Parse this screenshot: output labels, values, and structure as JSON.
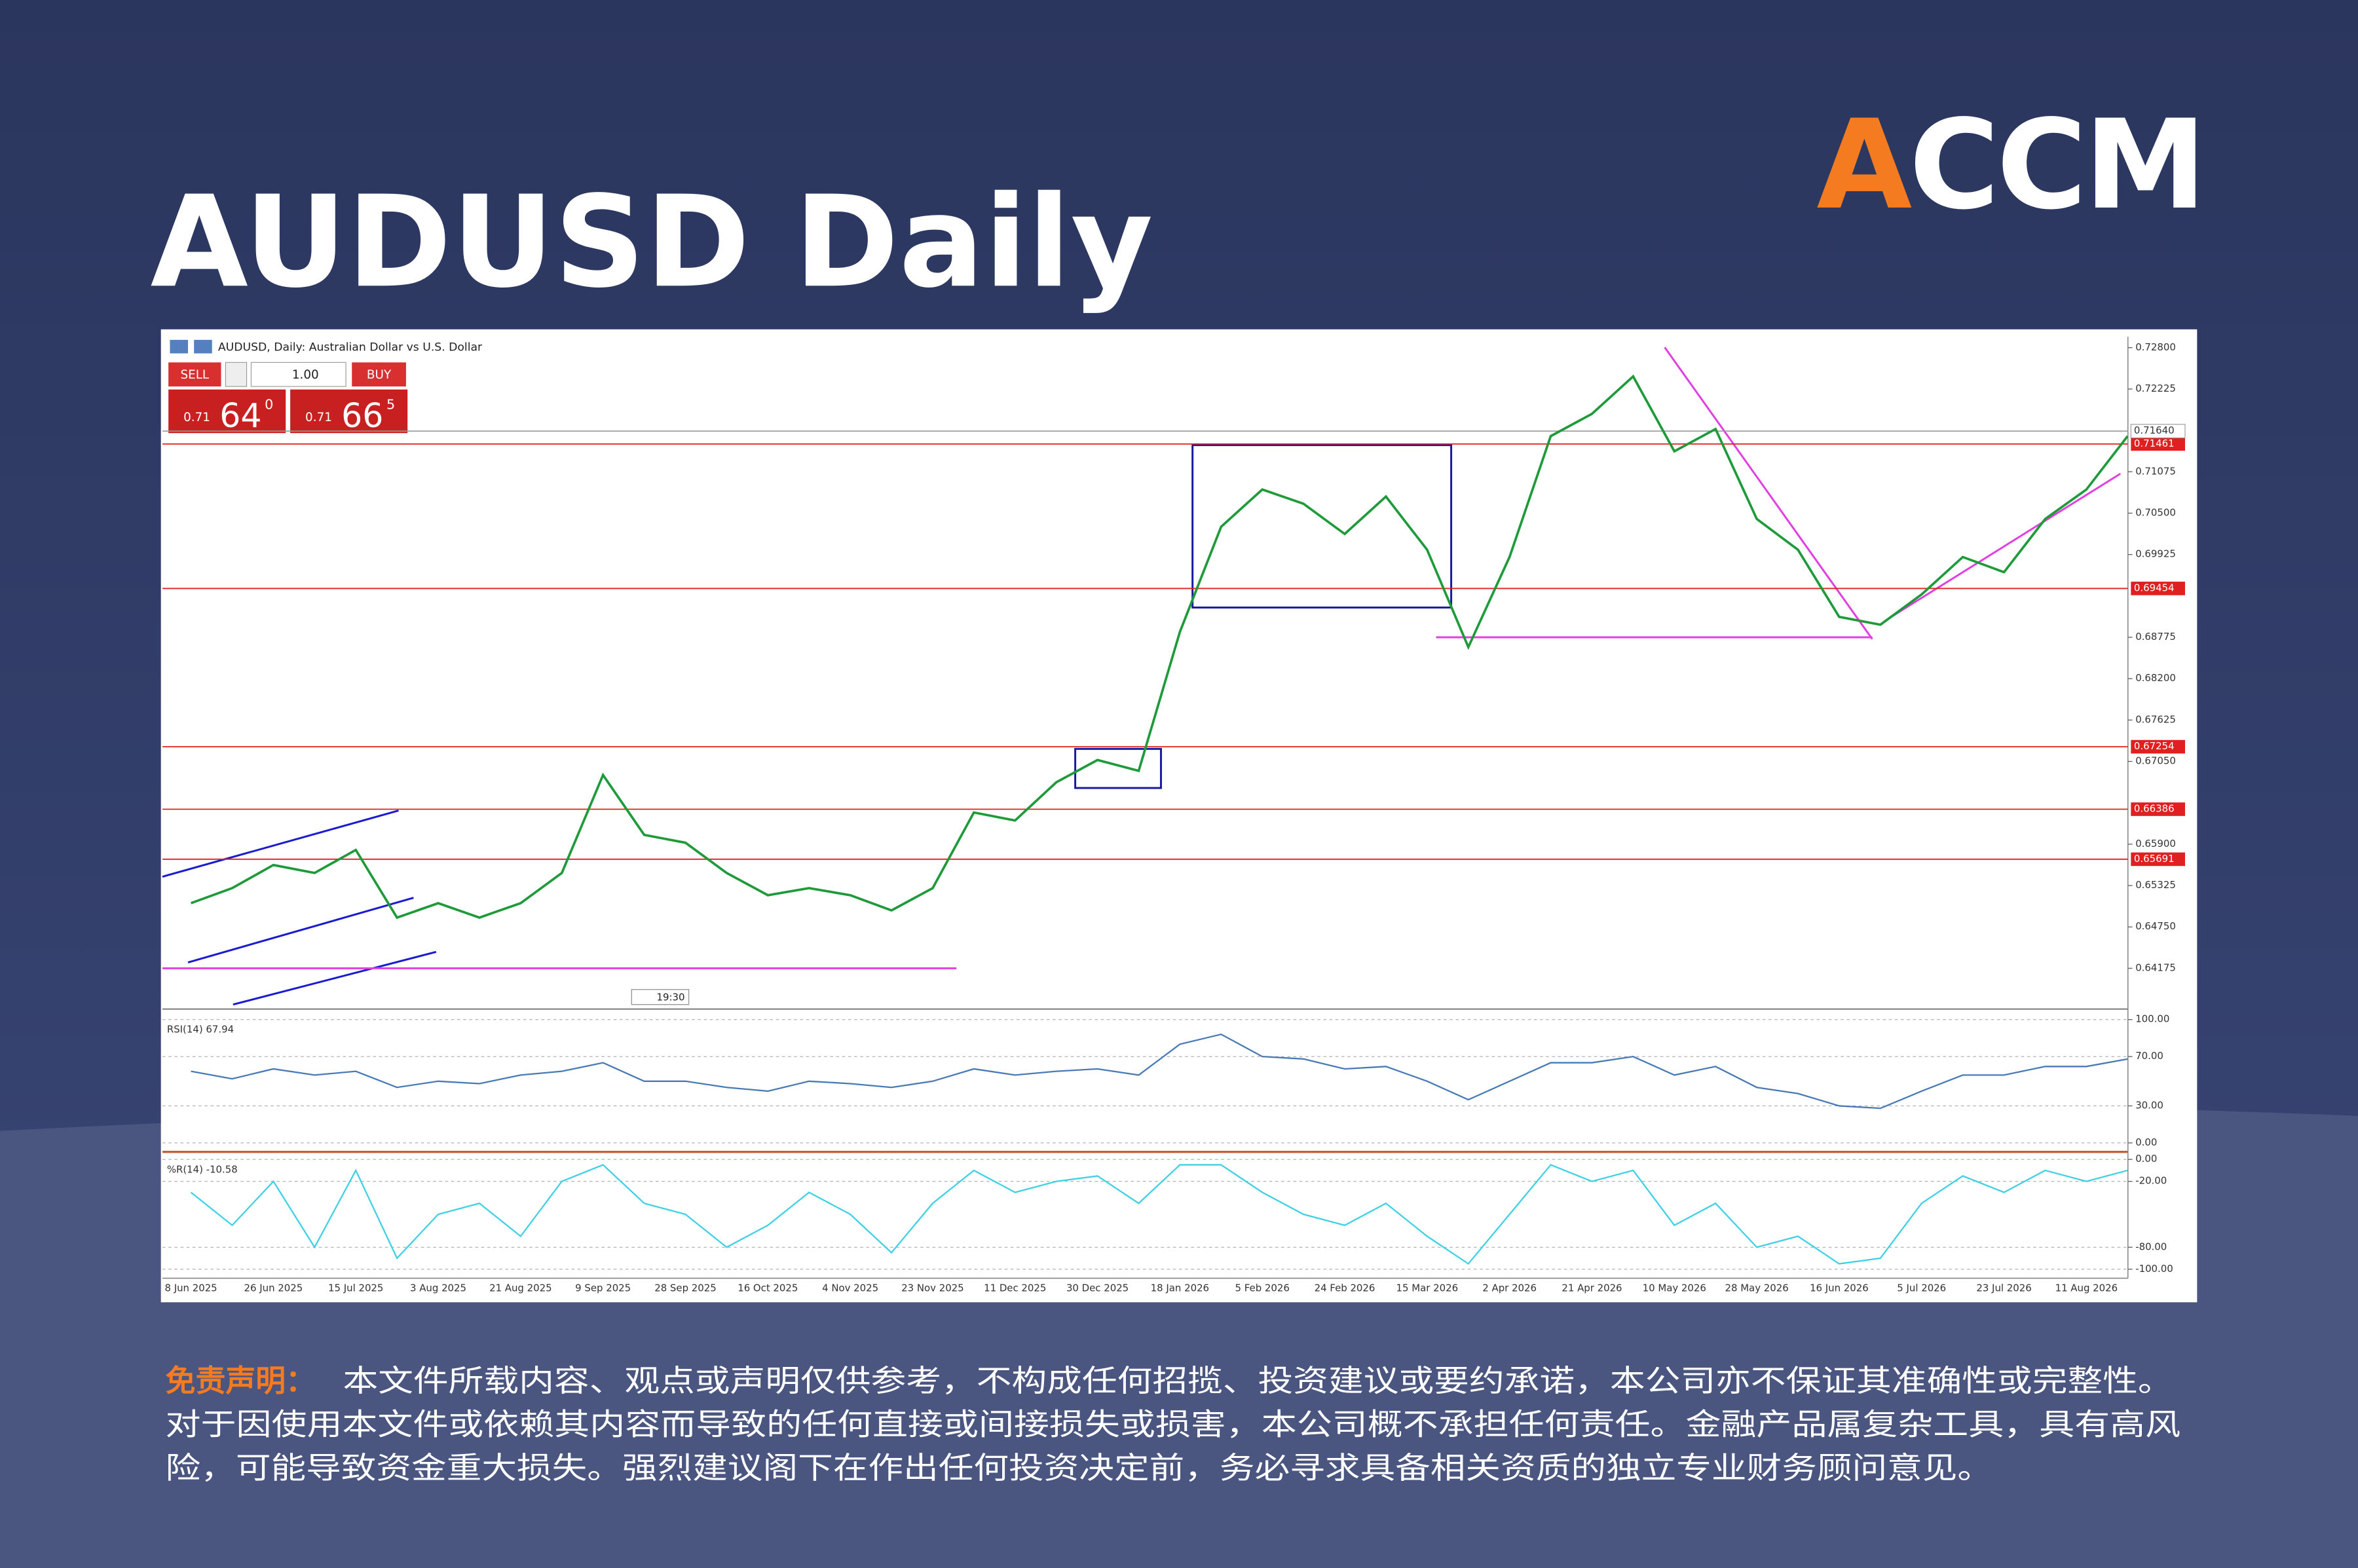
{
  "logo": {
    "accent": "A",
    "rest": "CCM"
  },
  "title": "AUDUSD Daily",
  "terminal": {
    "sell": "SELL",
    "buy": "BUY",
    "lot": "1.00",
    "bid": {
      "prefix": "0.71",
      "big": "64",
      "sup": "0"
    },
    "ask": {
      "prefix": "0.71",
      "big": "66",
      "sup": "5"
    },
    "clock": "19:30"
  },
  "chart_data": [
    {
      "type": "line",
      "title": "AUDUSD, Daily: Australian Dollar vs U.S. Dollar",
      "categories": [
        "8 Jun 2025",
        null,
        "26 Jun 2025",
        null,
        "15 Jul 2025",
        null,
        "3 Aug 2025",
        null,
        "21 Aug 2025",
        null,
        "9 Sep 2025",
        null,
        "28 Sep 2025",
        null,
        "16 Oct 2025",
        null,
        "4 Nov 2025",
        null,
        "23 Nov 2025",
        null,
        "11 Dec 2025",
        null,
        "30 Dec 2025",
        null,
        "18 Jan 2026",
        null,
        "5 Feb 2026",
        null,
        "24 Feb 2026",
        null,
        "15 Mar 2026",
        null,
        "2 Apr 2026",
        null,
        "21 Apr 2026",
        null,
        "10 May 2026",
        null,
        "28 May 2026",
        null,
        "16 Jun 2026",
        null,
        "5 Jul 2026",
        null,
        "23 Jul 2026",
        null,
        "11 Aug 2026",
        null
      ],
      "values": [
        0.6508,
        0.6529,
        0.6561,
        0.655,
        0.6582,
        0.6488,
        0.6508,
        0.6488,
        0.6508,
        0.655,
        0.6686,
        0.6603,
        0.6592,
        0.655,
        0.6519,
        0.6529,
        0.6519,
        0.6498,
        0.6529,
        0.6634,
        0.6623,
        0.6676,
        0.6707,
        0.6692,
        0.6885,
        0.7031,
        0.7083,
        0.7063,
        0.7021,
        0.7073,
        0.6999,
        0.6864,
        0.6989,
        0.7157,
        0.7188,
        0.724,
        0.7136,
        0.7167,
        0.7042,
        0.6999,
        0.6906,
        0.6895,
        0.6937,
        0.6989,
        0.6968,
        0.7042,
        0.7083,
        0.7157
      ],
      "color": "#1f9a3a",
      "ylim": [
        0.6363,
        0.7295
      ],
      "yticks": [
        {
          "value": 0.728,
          "label": "0.72800"
        },
        {
          "value": 0.72225,
          "label": "0.72225"
        },
        {
          "value": 0.71075,
          "label": "0.71075"
        },
        {
          "value": 0.705,
          "label": "0.70500"
        },
        {
          "value": 0.69925,
          "label": "0.69925"
        },
        {
          "value": 0.68775,
          "label": "0.68775"
        },
        {
          "value": 0.682,
          "label": "0.68200"
        },
        {
          "value": 0.67625,
          "label": "0.67625"
        },
        {
          "value": 0.6705,
          "label": "0.67050"
        },
        {
          "value": 0.659,
          "label": "0.65900"
        },
        {
          "value": 0.65325,
          "label": "0.65325"
        },
        {
          "value": 0.6475,
          "label": "0.64750"
        },
        {
          "value": 0.64175,
          "label": "0.64175"
        }
      ],
      "levels": [
        0.71461,
        0.69454,
        0.67254,
        0.66386,
        0.65691
      ],
      "level_color": "#e02020",
      "current_price": {
        "value": 0.7164,
        "label": "0.71640"
      },
      "support_lines": [
        0.64175,
        0.68775
      ],
      "support_color": "#e040e0"
    },
    {
      "type": "line",
      "title": "RSI(14) 67.94",
      "values": [
        58,
        52,
        60,
        55,
        58,
        45,
        50,
        48,
        55,
        58,
        65,
        50,
        50,
        45,
        42,
        50,
        48,
        45,
        50,
        60,
        55,
        58,
        60,
        55,
        80,
        88,
        70,
        68,
        60,
        62,
        50,
        35,
        50,
        65,
        65,
        70,
        55,
        62,
        45,
        40,
        30,
        28,
        42,
        55,
        55,
        62,
        62,
        68
      ],
      "color": "#4a7ab5",
      "ylim": [
        0,
        100
      ],
      "yticks": [
        {
          "value": 100,
          "label": "100.00"
        },
        {
          "value": 70,
          "label": "70.00"
        },
        {
          "value": 30,
          "label": "30.00"
        },
        {
          "value": 0,
          "label": "0.00"
        }
      ]
    },
    {
      "type": "line",
      "title": "%R(14) -10.58",
      "values": [
        -30,
        -60,
        -20,
        -80,
        -10,
        -90,
        -50,
        -40,
        -70,
        -20,
        -5,
        -40,
        -50,
        -80,
        -60,
        -30,
        -50,
        -85,
        -40,
        -10,
        -30,
        -20,
        -15,
        -40,
        -5,
        -5,
        -30,
        -50,
        -60,
        -40,
        -70,
        -95,
        -50,
        -5,
        -20,
        -10,
        -60,
        -40,
        -80,
        -70,
        -95,
        -90,
        -40,
        -15,
        -30,
        -10,
        -20,
        -10
      ],
      "color": "#40d0e4",
      "ylim": [
        -100,
        0
      ],
      "yticks": [
        {
          "value": 0,
          "label": "0.00"
        },
        {
          "value": -20,
          "label": "-20.00"
        },
        {
          "value": -80,
          "label": "-80.00"
        },
        {
          "value": -100,
          "label": "-100.00"
        }
      ]
    }
  ],
  "disclaimer": {
    "label": "免责声明：",
    "lines": [
      "本文件所载内容、观点或声明仅供参考，不构成任何招揽、投资建议或要约承诺，本公司亦不保证其准确性或完整性。",
      "对于因使用本文件或依赖其内容而导致的任何直接或间接损失或损害，本公司概不承担任何责任。金融产品属复杂工具，具有高风",
      "险，可能导致资金重大损失。强烈建议阁下在作出任何投资决定前，务必寻求具备相关资质的独立专业财务顾问意见。"
    ]
  }
}
